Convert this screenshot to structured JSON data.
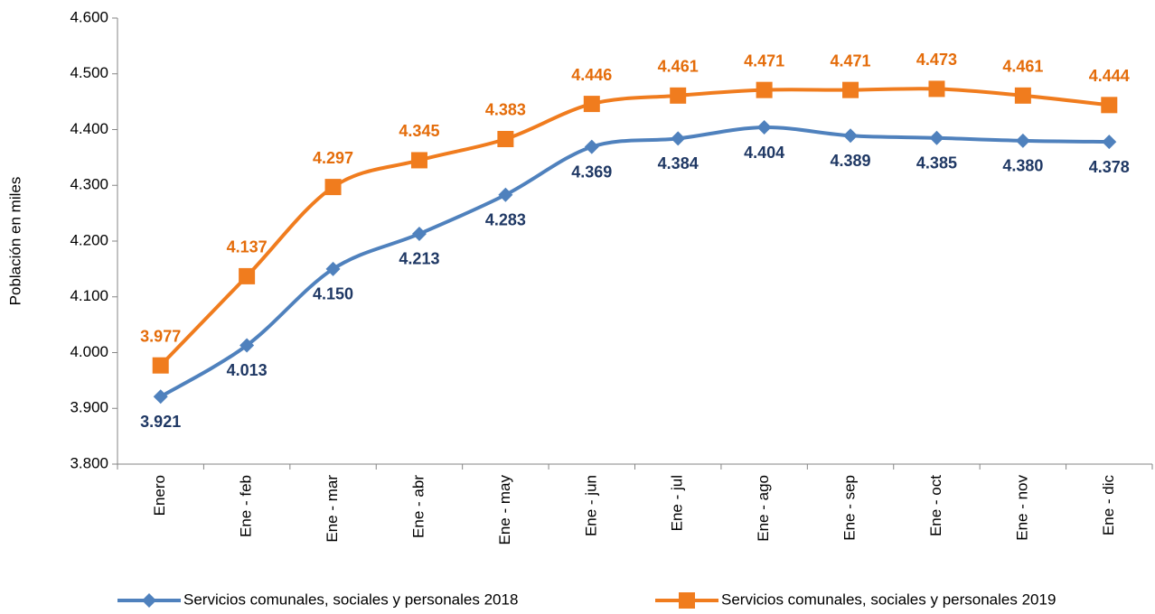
{
  "chart_data": {
    "type": "line",
    "y_label": "Población en miles",
    "categories": [
      "Enero",
      "Ene - feb",
      "Ene - mar",
      "Ene - abr",
      "Ene - may",
      "Ene - jun",
      "Ene - jul",
      "Ene - ago",
      "Ene - sep",
      "Ene - oct",
      "Ene - nov",
      "Ene - dic"
    ],
    "series": [
      {
        "name": "Servicios comunales, sociales y personales 2018",
        "color": "#4f81bd",
        "label_color": "#1f3864",
        "marker": "diamond",
        "values": [
          3921,
          4013,
          4150,
          4213,
          4283,
          4369,
          4384,
          4404,
          4389,
          4385,
          4380,
          4378
        ],
        "value_labels": [
          "3.921",
          "4.013",
          "4.150",
          "4.213",
          "4.283",
          "4.369",
          "4.384",
          "4.404",
          "4.389",
          "4.385",
          "4.380",
          "4.378"
        ]
      },
      {
        "name": "Servicios comunales, sociales y personales 2019",
        "color": "#f07c1e",
        "label_color": "#e46c0a",
        "marker": "square",
        "values": [
          3977,
          4137,
          4297,
          4345,
          4383,
          4446,
          4461,
          4471,
          4471,
          4473,
          4461,
          4444
        ],
        "value_labels": [
          "3.977",
          "4.137",
          "4.297",
          "4.345",
          "4.383",
          "4.446",
          "4.461",
          "4.471",
          "4.471",
          "4.473",
          "4.461",
          "4.444"
        ]
      }
    ],
    "ylim": [
      3800,
      4600
    ],
    "yticks": [
      {
        "value": 3800,
        "label": "3.800"
      },
      {
        "value": 3900,
        "label": "3.900"
      },
      {
        "value": 4000,
        "label": "4.000"
      },
      {
        "value": 4100,
        "label": "4.100"
      },
      {
        "value": 4200,
        "label": "4.200"
      },
      {
        "value": 4300,
        "label": "4.300"
      },
      {
        "value": 4400,
        "label": "4.400"
      },
      {
        "value": 4500,
        "label": "4.500"
      },
      {
        "value": 4600,
        "label": "4.600"
      }
    ],
    "grid": false,
    "smooth": true,
    "legend": "bottom"
  }
}
